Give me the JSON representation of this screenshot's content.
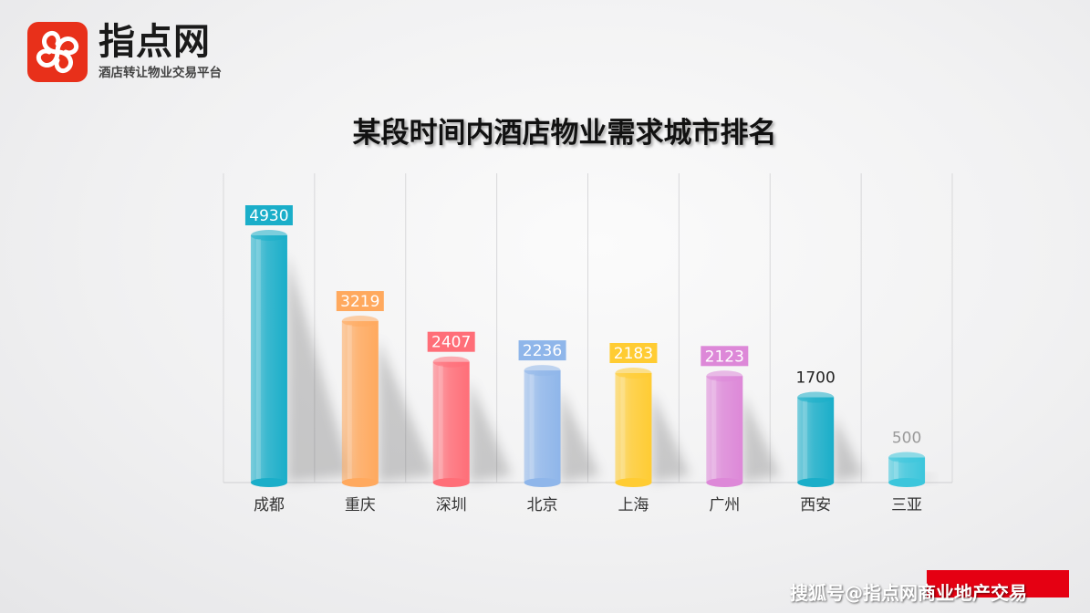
{
  "logo": {
    "name": "指点网",
    "tagline": "酒店转让物业交易平台",
    "icon": "pinwheel-logo-icon",
    "color": "#e8301a"
  },
  "watermark": {
    "text": "搜狐号@指点网商业地产交易"
  },
  "chart_data": {
    "type": "bar",
    "title": "某段时间内酒店物业需求城市排名",
    "categories": [
      "成都",
      "重庆",
      "深圳",
      "北京",
      "上海",
      "广州",
      "西安",
      "三亚"
    ],
    "values": [
      4930,
      3219,
      2407,
      2236,
      2183,
      2123,
      1700,
      500
    ],
    "colors": [
      "#1aaec9",
      "#ffa95e",
      "#ff6e78",
      "#8fb6ea",
      "#ffcc33",
      "#dd88d8",
      "#1aaec9",
      "#3cc6dc"
    ],
    "ylim": [
      0,
      5500
    ],
    "grid": "vertical",
    "xlabel": "",
    "ylabel": ""
  }
}
